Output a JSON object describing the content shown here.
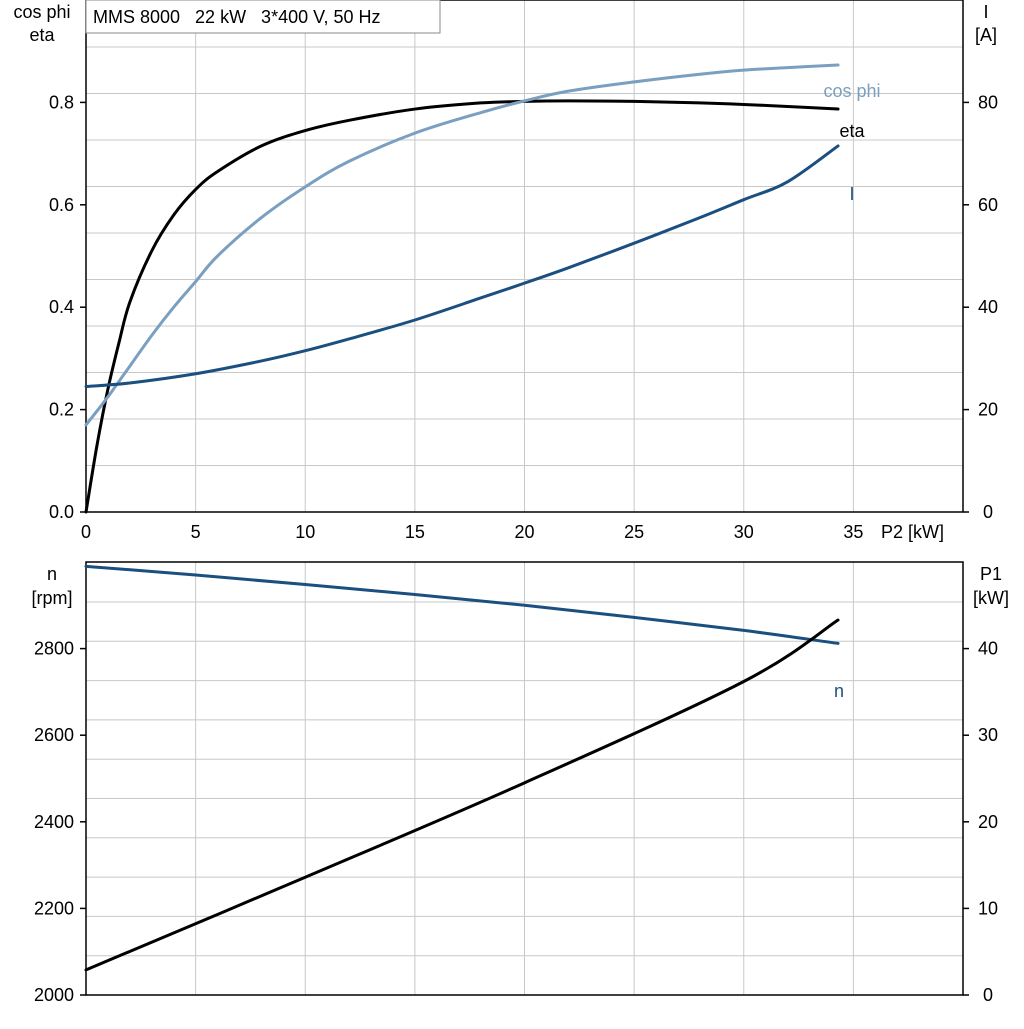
{
  "chart_data": [
    {
      "type": "line",
      "title": "MMS 8000   22 kW   3*400 V, 50 Hz",
      "xlabel": "P2 [kW]",
      "x_ticks": [
        "0",
        "5",
        "10",
        "15",
        "20",
        "25",
        "30",
        "35"
      ],
      "xlim": [
        0,
        40
      ],
      "y_left": {
        "label_lines": [
          "cos phi",
          "eta"
        ],
        "ylim": [
          0,
          1.0
        ],
        "ticks": [
          0.0,
          0.2,
          0.4,
          0.6,
          0.8
        ],
        "tick_labels": [
          "0.0",
          "0.2",
          "0.4",
          "0.6",
          "0.8"
        ]
      },
      "y_right": {
        "label_lines": [
          "I",
          "[A]"
        ],
        "ylim": [
          0,
          100
        ],
        "ticks": [
          0,
          20,
          40,
          60,
          80
        ],
        "tick_labels": [
          "0",
          "20",
          "40",
          "60",
          "80"
        ]
      },
      "grid": true,
      "series": [
        {
          "name": "eta",
          "axis": "left",
          "color": "#000000",
          "x": [
            0,
            0.5,
            1,
            1.5,
            2,
            3,
            4,
            5,
            6,
            8,
            10,
            12,
            15,
            18,
            20,
            22,
            25,
            28,
            30,
            32,
            34.3
          ],
          "y": [
            0,
            0.13,
            0.24,
            0.33,
            0.41,
            0.51,
            0.58,
            0.63,
            0.665,
            0.715,
            0.745,
            0.765,
            0.787,
            0.799,
            0.802,
            0.803,
            0.802,
            0.799,
            0.796,
            0.792,
            0.787
          ]
        },
        {
          "name": "cos phi",
          "axis": "left",
          "color": "#7a9fc0",
          "x": [
            0,
            1,
            2,
            3,
            4,
            5,
            6,
            8,
            10,
            12,
            15,
            18,
            20,
            22,
            25,
            28,
            30,
            32,
            34.3
          ],
          "y": [
            0.17,
            0.225,
            0.285,
            0.345,
            0.4,
            0.45,
            0.5,
            0.575,
            0.635,
            0.685,
            0.74,
            0.78,
            0.803,
            0.822,
            0.84,
            0.855,
            0.863,
            0.868,
            0.873
          ]
        },
        {
          "name": "I",
          "axis": "right",
          "color": "#1a4f80",
          "x": [
            0,
            2,
            5,
            8,
            10,
            12,
            15,
            18,
            20,
            22,
            25,
            28,
            30,
            32,
            34.3
          ],
          "y": [
            24.5,
            25.2,
            27,
            29.5,
            31.5,
            33.8,
            37.5,
            41.8,
            44.7,
            47.7,
            52.5,
            57.5,
            61,
            64.5,
            71.5
          ]
        }
      ]
    },
    {
      "type": "line",
      "xlim": [
        0,
        40
      ],
      "y_left": {
        "label_lines": [
          "n",
          "[rpm]"
        ],
        "ylim": [
          2000,
          3000
        ],
        "ticks": [
          2000,
          2200,
          2400,
          2600,
          2800
        ],
        "tick_labels": [
          "2000",
          "2200",
          "2400",
          "2600",
          "2800"
        ]
      },
      "y_right": {
        "label_lines": [
          "P1",
          "[kW]"
        ],
        "ylim": [
          0,
          50
        ],
        "ticks": [
          0,
          10,
          20,
          30,
          40
        ],
        "tick_labels": [
          "0",
          "10",
          "20",
          "30",
          "40"
        ]
      },
      "grid": true,
      "series": [
        {
          "name": "n",
          "axis": "left",
          "color": "#1a4f80",
          "x": [
            0,
            5,
            10,
            15,
            20,
            25,
            30,
            34.3
          ],
          "y": [
            2990,
            2970,
            2948,
            2925,
            2900,
            2872,
            2842,
            2812
          ]
        },
        {
          "name": "",
          "axis": "right",
          "color": "#000000",
          "x": [
            0,
            10,
            20,
            30,
            34.3
          ],
          "y": [
            2.9,
            13.6,
            24.5,
            36.2,
            43.3
          ]
        }
      ]
    }
  ]
}
